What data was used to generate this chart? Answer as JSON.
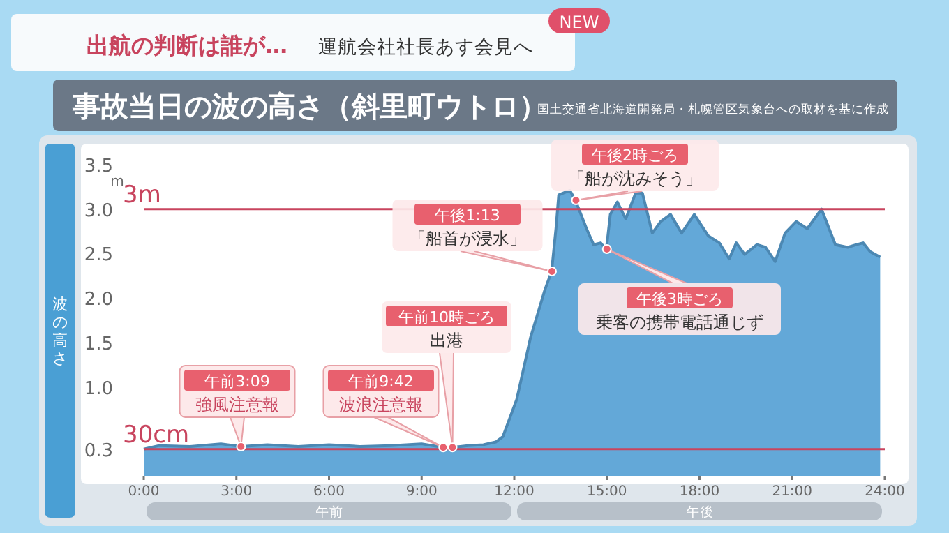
{
  "chart_data": {
    "type": "area",
    "title": "事故当日の波の高さ（斜里町ウトロ）",
    "ylabel": "波の高さ",
    "annotations": [
      "出航の判断は誰が…",
      "運航会社社長あす会見へ",
      "NEW",
      "国土交通省北海道開発局・札幌管区気象台への取材を基に作成",
      "m",
      "午前",
      "午後",
      "午前3:09",
      {
        "text": "強風注意報",
        "x": 3.15,
        "y": 0.33
      },
      "午前9:42",
      {
        "text": "波浪注意報",
        "x": 9.7,
        "y": 0.32
      },
      "午前10時ごろ",
      {
        "text": "出港",
        "x": 10,
        "y": 0.32
      },
      "午後1:13",
      {
        "text": "「船首が浸水」",
        "x": 13.22,
        "y": 2.3
      },
      "午後2時ごろ",
      {
        "text": "「船が沈みそう」",
        "x": 14,
        "y": 3.1
      },
      {
        "text": "午後3時ごろ",
        "x": 15,
        "y": 2.55
      },
      "乗客の携帯電話通じず"
    ],
    "x": [
      0,
      0.5,
      1.5,
      2.5,
      3.15,
      4,
      5,
      6,
      7,
      8,
      9,
      9.7,
      10,
      10.5,
      11,
      11.4,
      11.63,
      12.08,
      12.53,
      12.99,
      13.21,
      13.35,
      13.44,
      13.8,
      13.98,
      14.34,
      14.57,
      14.8,
      14.98,
      15.11,
      15.34,
      15.61,
      15.93,
      16.15,
      16.47,
      16.74,
      17.06,
      17.42,
      17.83,
      18.28,
      18.64,
      18.96,
      19.19,
      19.46,
      19.86,
      20.14,
      20.45,
      20.77,
      21.13,
      21.49,
      21.95,
      22.4,
      22.8,
      23.08,
      23.3,
      23.53,
      23.85
    ],
    "series": [
      {
        "color": "#5ba3d6",
        "values": [
          0.3,
          0.34,
          0.33,
          0.36,
          0.33,
          0.35,
          0.33,
          0.35,
          0.33,
          0.34,
          0.36,
          0.32,
          0.32,
          0.34,
          0.35,
          0.38,
          0.44,
          0.86,
          1.56,
          2.09,
          2.3,
          2.78,
          3.16,
          3.21,
          3.1,
          2.78,
          2.6,
          2.62,
          2.54,
          2.94,
          3.08,
          2.89,
          3.18,
          3.18,
          2.73,
          2.86,
          2.94,
          2.73,
          2.94,
          2.7,
          2.62,
          2.44,
          2.62,
          2.49,
          2.6,
          2.57,
          2.41,
          2.73,
          2.86,
          2.78,
          3.0,
          2.6,
          2.57,
          2.6,
          2.62,
          2.52,
          2.46
        ]
      }
    ],
    "xlim": [
      0,
      24
    ],
    "xticks": [
      {
        "value": 0,
        "label": "0:00"
      },
      {
        "value": 3,
        "label": "3:00"
      },
      {
        "value": 6,
        "label": "6:00"
      },
      {
        "value": 9,
        "label": "9:00"
      },
      {
        "value": 12,
        "label": "12:00"
      },
      {
        "value": 15,
        "label": "15:00"
      },
      {
        "value": 18,
        "label": "18:00"
      },
      {
        "value": 21,
        "label": "21:00"
      },
      {
        "value": 24,
        "label": "24:00"
      }
    ],
    "ylim": [
      0,
      3.5
    ],
    "yticks": [
      {
        "value": 0.3,
        "label": "0.3"
      },
      {
        "value": 1,
        "label": "1.0"
      },
      {
        "value": 1.5,
        "label": "1.5"
      },
      {
        "value": 2,
        "label": "2.0"
      },
      {
        "value": 2.5,
        "label": "2.5"
      },
      {
        "value": 3,
        "label": "3.0"
      },
      {
        "value": 3.5,
        "label": "3.5"
      }
    ],
    "ref_lines": [
      {
        "axis": "y",
        "value": 3,
        "label": "3m",
        "color": "#c8445e"
      },
      {
        "axis": "y",
        "value": 0.3,
        "label": "30cm",
        "color": "#c8445e"
      }
    ]
  }
}
